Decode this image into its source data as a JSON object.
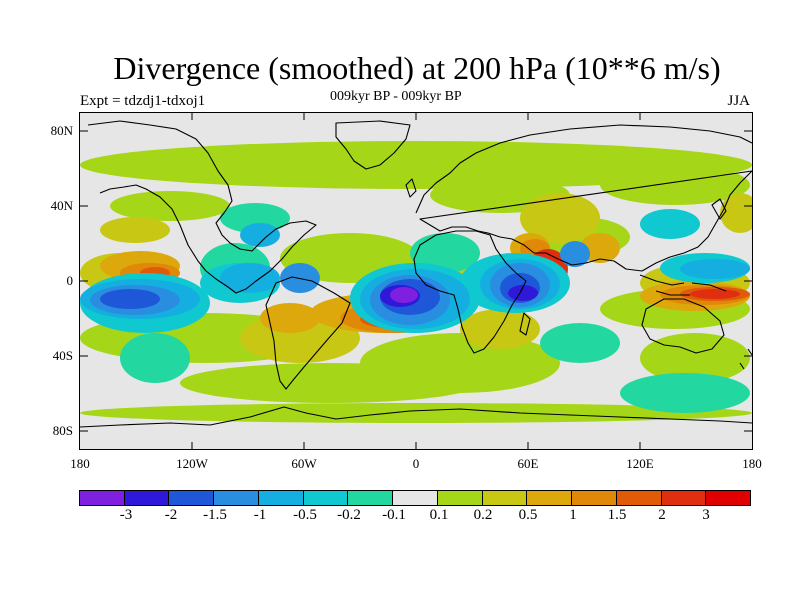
{
  "title": "Divergence (smoothed) at 200 hPa (10**6 m/s)",
  "subtitle": "009kyr BP - 009kyr BP",
  "experiment": "Expt = tdzdj1-tdxoj1",
  "season": "JJA",
  "lat_labels": [
    "80N",
    "40N",
    "0",
    "40S",
    "80S"
  ],
  "lon_labels": [
    "180",
    "120W",
    "60W",
    "0",
    "60E",
    "120E",
    "180"
  ],
  "legend_labels": [
    "-3",
    "-2",
    "-1.5",
    "-1",
    "-0.5",
    "-0.2",
    "-0.1",
    "0.1",
    "0.2",
    "0.5",
    "1",
    "1.5",
    "2",
    "3"
  ],
  "legend_colors": [
    "#7f20e0",
    "#3018d8",
    "#1e58d8",
    "#2a8ee0",
    "#14aee0",
    "#10c8d0",
    "#22d8a0",
    "#e6e6e6",
    "#a6d618",
    "#c8c814",
    "#dca80c",
    "#e08808",
    "#e05a08",
    "#e02e10",
    "#e00000"
  ],
  "fill_colors": {
    "neutral": "#e6e6e6",
    "pos_02": "#a6d618",
    "pos_05": "#c8c814",
    "pos_1": "#dca80c",
    "pos_15": "#e08808",
    "pos_2": "#e05a08",
    "pos_3": "#e02e10",
    "pos_max": "#e00000",
    "neg_01": "#22d8a0",
    "neg_02": "#10c8d0",
    "neg_05": "#14aee0",
    "neg_1": "#2a8ee0",
    "neg_15": "#1e58d8",
    "neg_2": "#3018d8",
    "neg_3": "#7f20e0"
  }
}
